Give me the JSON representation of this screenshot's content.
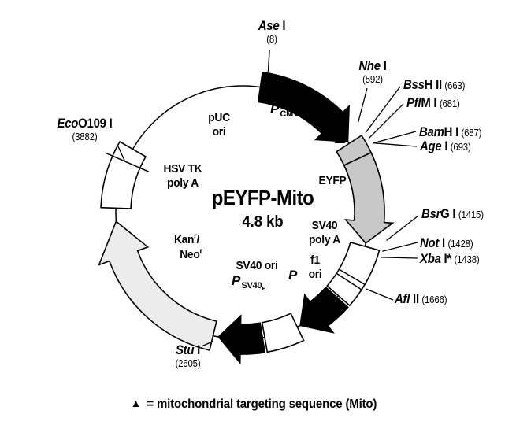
{
  "figure": {
    "title": "pEYFP-Mito",
    "size": "4.8 kb"
  },
  "restriction_sites": {
    "ase1": {
      "italic": "Ase",
      "roman": " I",
      "site": "(8)"
    },
    "nhe1": {
      "italic": "Nhe",
      "roman": " I",
      "site": "(592)"
    },
    "bssh2": {
      "italic": "Bss",
      "roman": "H II",
      "site": "(663)"
    },
    "pflm1": {
      "italic": "Pfl",
      "roman": "M I",
      "site": "(681)"
    },
    "bamh1": {
      "italic": "Bam",
      "roman": "H I",
      "site": "(687)"
    },
    "age1": {
      "italic": "Age",
      "roman": " I",
      "site": "(693)"
    },
    "bsrg1": {
      "italic": "Bsr",
      "roman": "G I",
      "site": "(1415)"
    },
    "not1": {
      "italic": "Not",
      "roman": " I",
      "site": "(1428)"
    },
    "xba1": {
      "italic": "Xba",
      "roman": " I*",
      "site": "(1438)"
    },
    "afl2": {
      "italic": "Afl",
      "roman": " II",
      "site": "(1666)"
    },
    "stu1": {
      "italic": "Stu",
      "roman": " I",
      "site": "(2605)"
    },
    "eco0109": {
      "italic": "Eco",
      "roman": "O109 I",
      "site": "(3882)"
    }
  },
  "features": {
    "puc": {
      "line1": "pUC",
      "line2": "ori"
    },
    "pcmv": {
      "p": "P",
      "sub": "CMV IE"
    },
    "eyfp": {
      "label": "EYFP"
    },
    "hsvtk": {
      "line1": "HSV TK",
      "line2": "poly A"
    },
    "kanneo": {
      "name1": "Kan",
      "sup1": "r",
      "slash": "/",
      "name2": "Neo",
      "sup2": "r"
    },
    "sv40pa": {
      "line1": "SV40",
      "line2": "poly A"
    },
    "f1": {
      "line1": "f1",
      "line2": "ori"
    },
    "sv40ori": {
      "label": "SV40 ori"
    },
    "psv40": {
      "p": "P",
      "sub": "SV40",
      "sube": "e"
    },
    "pf1": {
      "p": "P"
    }
  },
  "legend": {
    "symbol": "▲",
    "text": "= mitochondrial targeting sequence (Mito)"
  },
  "colors": {
    "black": "#000000",
    "eyfp_gray": "#c8c8c8",
    "kan_gray": "#ececec",
    "white": "#ffffff"
  }
}
